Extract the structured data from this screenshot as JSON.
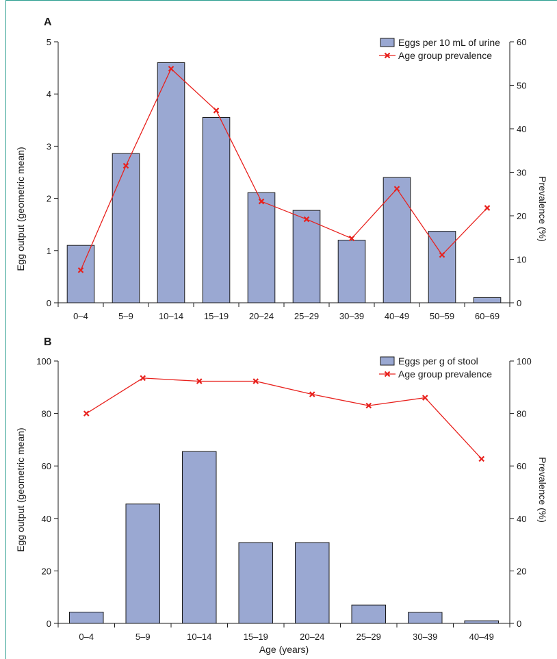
{
  "chart_data": [
    {
      "type": "bar",
      "panel_label": "A",
      "categories": [
        "0–4",
        "5–9",
        "10–14",
        "15–19",
        "20–24",
        "25–29",
        "30–39",
        "40–49",
        "50–59",
        "60–69"
      ],
      "series": [
        {
          "name": "Eggs per 10 mL of urine",
          "type": "bar",
          "axis": "left",
          "values": [
            1.1,
            2.86,
            4.6,
            3.55,
            2.11,
            1.77,
            1.2,
            2.4,
            1.37,
            0.1
          ],
          "color": "#9aa8d2"
        },
        {
          "name": "Age group prevalence",
          "type": "line",
          "axis": "right",
          "values": [
            7.5,
            31.5,
            53.8,
            44.2,
            23.3,
            19.2,
            14.8,
            26.2,
            11.0,
            21.8
          ],
          "color": "#e8201c"
        }
      ],
      "ylabel": "Egg output (geometric mean)",
      "y2label": "Prevalence (%)",
      "ylim": [
        0,
        5
      ],
      "yticks": [
        0,
        1,
        2,
        3,
        4,
        5
      ],
      "y2lim": [
        0,
        60
      ],
      "y2ticks": [
        0,
        10,
        20,
        30,
        40,
        50,
        60
      ],
      "xlabel": "",
      "legend": "top-right",
      "grid": false
    },
    {
      "type": "bar",
      "panel_label": "B",
      "categories": [
        "0–4",
        "5–9",
        "10–14",
        "15–19",
        "20–24",
        "25–29",
        "30–39",
        "40–49"
      ],
      "series": [
        {
          "name": "Eggs per g of stool",
          "type": "bar",
          "axis": "left",
          "values": [
            4.3,
            45.5,
            65.5,
            30.8,
            30.8,
            7.0,
            4.2,
            1.0
          ],
          "color": "#9aa8d2"
        },
        {
          "name": "Age group prevalence",
          "type": "line",
          "axis": "right",
          "values": [
            80.0,
            93.5,
            92.3,
            92.3,
            87.3,
            83.0,
            86.0,
            62.7
          ],
          "color": "#e8201c"
        }
      ],
      "ylabel": "Egg output (geometric mean)",
      "y2label": "Prevalence (%)",
      "ylim": [
        0,
        100
      ],
      "yticks": [
        0,
        20,
        40,
        60,
        80,
        100
      ],
      "y2lim": [
        0,
        100
      ],
      "y2ticks": [
        0,
        20,
        40,
        60,
        80,
        100
      ],
      "xlabel": "Age (years)",
      "legend": "top-right",
      "grid": false
    }
  ]
}
